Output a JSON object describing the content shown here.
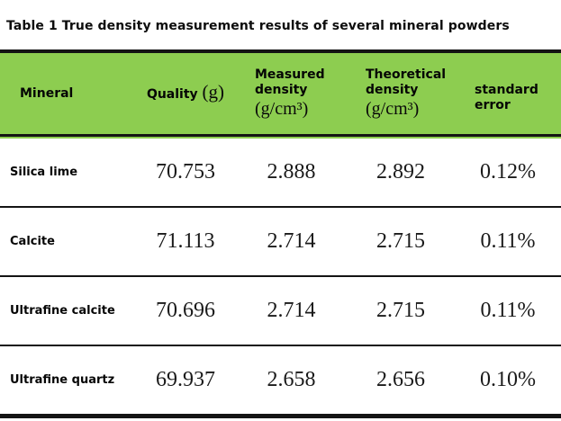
{
  "caption": "Table 1 True density measurement results of several mineral powders",
  "table": {
    "colors": {
      "header_bg": "#8dcd50",
      "rule": "#141414",
      "value_text": "#1a1a1a"
    },
    "columns": [
      {
        "label": "Mineral",
        "unit": ""
      },
      {
        "label": "Quality",
        "unit": "(g)"
      },
      {
        "label": "Measured density",
        "unit": "(g/cm³)"
      },
      {
        "label": "Theoretical density",
        "unit": "(g/cm³)"
      },
      {
        "label": "standard error",
        "unit": ""
      }
    ],
    "rows": [
      {
        "mineral": "Silica lime",
        "quality": "70.753",
        "measured": "2.888",
        "theoretical": "2.892",
        "error": "0.12%"
      },
      {
        "mineral": "Calcite",
        "quality": "71.113",
        "measured": "2.714",
        "theoretical": "2.715",
        "error": "0.11%"
      },
      {
        "mineral": "Ultrafine calcite",
        "quality": "70.696",
        "measured": "2.714",
        "theoretical": "2.715",
        "error": "0.11%"
      },
      {
        "mineral": "Ultrafine quartz",
        "quality": "69.937",
        "measured": "2.658",
        "theoretical": "2.656",
        "error": "0.10%"
      }
    ]
  }
}
